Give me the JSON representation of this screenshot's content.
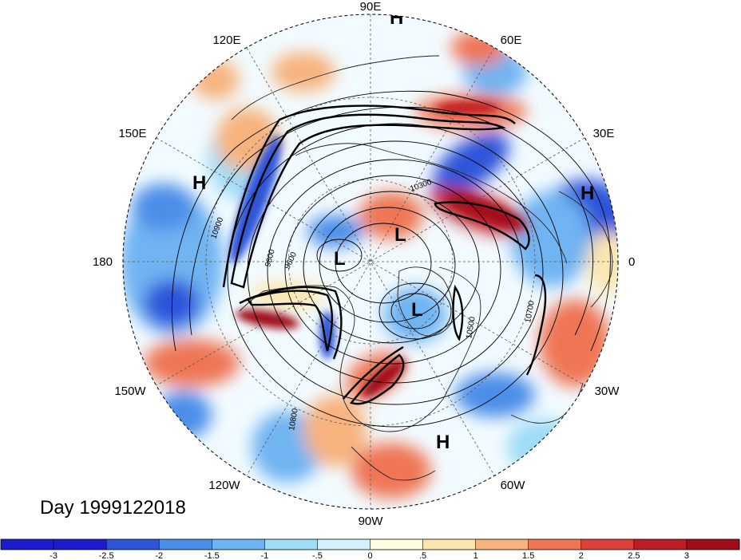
{
  "map": {
    "projection": "north-polar-stereographic",
    "colors": {
      "background": "#f2fbff",
      "coast": "#222222",
      "grid": "#555555",
      "contour": "#000000"
    }
  },
  "longitude_labels": [
    {
      "id": "lon-90e",
      "text": "90E"
    },
    {
      "id": "lon-60e",
      "text": "60E"
    },
    {
      "id": "lon-30e",
      "text": "30E"
    },
    {
      "id": "lon-0",
      "text": "0"
    },
    {
      "id": "lon-30w",
      "text": "30W"
    },
    {
      "id": "lon-60w",
      "text": "60W"
    },
    {
      "id": "lon-90w",
      "text": "90W"
    },
    {
      "id": "lon-120w",
      "text": "120W"
    },
    {
      "id": "lon-150w",
      "text": "150W"
    },
    {
      "id": "lon-180",
      "text": "180"
    },
    {
      "id": "lon-150e",
      "text": "150E"
    },
    {
      "id": "lon-120e",
      "text": "120E"
    }
  ],
  "pressure_centers": [
    {
      "id": "high-top",
      "text": "H"
    },
    {
      "id": "high-west",
      "text": "H"
    },
    {
      "id": "high-east",
      "text": "H"
    },
    {
      "id": "high-south",
      "text": "H"
    },
    {
      "id": "low-center",
      "text": "L"
    },
    {
      "id": "low-north",
      "text": "L"
    },
    {
      "id": "low-southeast",
      "text": "L"
    }
  ],
  "contour_labels": [
    {
      "id": "c-10300",
      "text": "10300"
    },
    {
      "id": "c-10900",
      "text": "10900"
    },
    {
      "id": "c-9800",
      "text": "9800"
    },
    {
      "id": "c-9600",
      "text": "9600"
    },
    {
      "id": "c-10500",
      "text": "10500"
    },
    {
      "id": "c-10700",
      "text": "10700"
    },
    {
      "id": "c-10800",
      "text": "10800"
    }
  ],
  "date_label": "Day 1999122018",
  "colorbar": {
    "colors": [
      "#1c1ccc",
      "#2d55d9",
      "#4b8ee8",
      "#6fb4f2",
      "#9fdcf7",
      "#d4f1fb",
      "#fffde0",
      "#fce6b0",
      "#f7b37e",
      "#ef7655",
      "#e0403a",
      "#bf1d24",
      "#a10c1b"
    ],
    "ticks": [
      "-3",
      "-2.5",
      "-2",
      "-1.5",
      "-1",
      "-.5",
      "0",
      ".5",
      "1",
      "1.5",
      "2",
      "2.5",
      "3"
    ]
  }
}
